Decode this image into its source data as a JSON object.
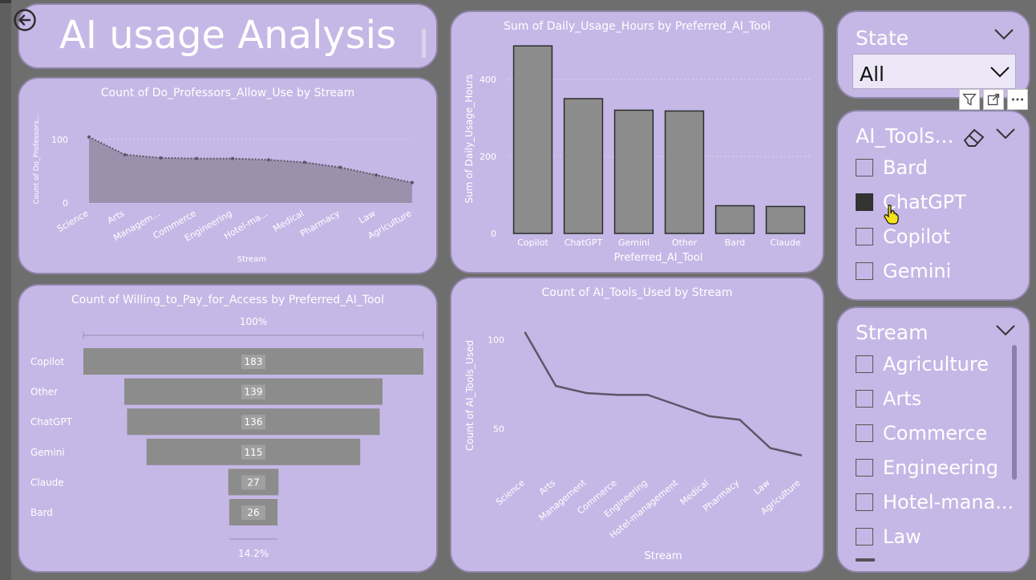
{
  "dashboard": {
    "title": "AI usage Analysis"
  },
  "charts": [
    {
      "id": "area",
      "chart_data": {
        "type": "area",
        "title": "Count of Do_Professors_Allow_Use by Stream",
        "xlabel": "Stream",
        "ylabel": "Count of Do_Professors...",
        "categories": [
          "Science",
          "Arts",
          "Managem...",
          "Commerce",
          "Engineering",
          "Hotel-ma...",
          "Medical",
          "Pharmacy",
          "Law",
          "Agriculture"
        ],
        "yticks": [
          0,
          100
        ],
        "ylim": [
          0,
          115
        ],
        "values": [
          104,
          76,
          71,
          70,
          70,
          68,
          64,
          56,
          44,
          32
        ],
        "grid": true
      }
    },
    {
      "id": "bars",
      "chart_data": {
        "type": "bar",
        "title": "Sum of Daily_Usage_Hours by Preferred_AI_Tool",
        "xlabel": "Preferred_AI_Tool",
        "ylabel": "Sum of Daily_Usage_Hours",
        "categories": [
          "Copilot",
          "ChatGPT",
          "Gemini",
          "Other",
          "Bard",
          "Claude"
        ],
        "values": [
          487,
          350,
          320,
          318,
          72,
          70
        ],
        "yticks": [
          0,
          200,
          400
        ],
        "ylim": [
          0,
          500
        ],
        "grid": true
      }
    },
    {
      "id": "funnel",
      "chart_data": {
        "type": "bar",
        "orientation": "funnel",
        "title": "Count of Willing_to_Pay_for_Access by Preferred_AI_Tool",
        "top_label": "100%",
        "bottom_label": "14.2%",
        "categories": [
          "Copilot",
          "Other",
          "ChatGPT",
          "Gemini",
          "Claude",
          "Bard"
        ],
        "values": [
          183,
          139,
          136,
          115,
          27,
          26
        ],
        "max": 183
      }
    },
    {
      "id": "line",
      "chart_data": {
        "type": "line",
        "title": "Count of AI_Tools_Used by Stream",
        "xlabel": "Stream",
        "ylabel": "Count of AI_Tools_Used",
        "categories": [
          "Science",
          "Arts",
          "Management",
          "Commerce",
          "Engineering",
          "Hotel-management",
          "Medical",
          "Pharmacy",
          "Law",
          "Agriculture"
        ],
        "values": [
          104,
          74,
          70,
          69,
          69,
          63,
          57,
          55,
          39,
          35
        ],
        "yticks": [
          50,
          100
        ],
        "ylim": [
          28,
          112
        ],
        "grid": false
      }
    }
  ],
  "slicers": {
    "state": {
      "title": "State",
      "selected": "All"
    },
    "ai_tools": {
      "title": "AI_Tools...",
      "items": [
        {
          "label": "Bard",
          "checked": false
        },
        {
          "label": "ChatGPT",
          "checked": true
        },
        {
          "label": "Copilot",
          "checked": false
        },
        {
          "label": "Gemini",
          "checked": false
        }
      ]
    },
    "stream": {
      "title": "Stream",
      "items": [
        {
          "label": "Agriculture",
          "checked": false
        },
        {
          "label": "Arts",
          "checked": false
        },
        {
          "label": "Commerce",
          "checked": false
        },
        {
          "label": "Engineering",
          "checked": false
        },
        {
          "label": "Hotel-mana...",
          "checked": false
        },
        {
          "label": "Law",
          "checked": false
        }
      ]
    }
  },
  "colors": {
    "card": "#c5b8e6",
    "bar": "#8c8c8c",
    "area_fill": "#9d90ad",
    "line": "#5e5668"
  }
}
